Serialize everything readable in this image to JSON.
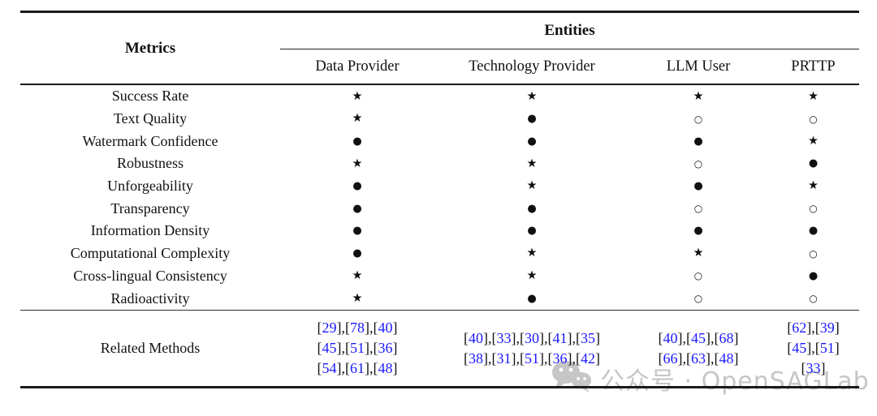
{
  "table": {
    "corner_label": "Metrics",
    "entities_group_label": "Entities",
    "entity_columns": [
      "Data Provider",
      "Technology Provider",
      "LLM User",
      "PRTTP"
    ],
    "symbol_glyphs": {
      "star": "★",
      "filled": "●",
      "open": "○"
    },
    "rows": [
      {
        "metric": "Success Rate",
        "cells": [
          "star",
          "star",
          "star",
          "star"
        ]
      },
      {
        "metric": "Text Quality",
        "cells": [
          "star",
          "filled",
          "open",
          "open"
        ]
      },
      {
        "metric": "Watermark Confidence",
        "cells": [
          "filled",
          "filled",
          "filled",
          "star"
        ]
      },
      {
        "metric": "Robustness",
        "cells": [
          "star",
          "star",
          "open",
          "filled"
        ]
      },
      {
        "metric": "Unforgeability",
        "cells": [
          "filled",
          "star",
          "filled",
          "star"
        ]
      },
      {
        "metric": "Transparency",
        "cells": [
          "filled",
          "filled",
          "open",
          "open"
        ]
      },
      {
        "metric": "Information Density",
        "cells": [
          "filled",
          "filled",
          "filled",
          "filled"
        ]
      },
      {
        "metric": "Computational Complexity",
        "cells": [
          "filled",
          "star",
          "star",
          "open"
        ]
      },
      {
        "metric": "Cross-lingual Consistency",
        "cells": [
          "star",
          "star",
          "open",
          "filled"
        ]
      },
      {
        "metric": "Radioactivity",
        "cells": [
          "star",
          "filled",
          "open",
          "open"
        ]
      }
    ],
    "related_methods": {
      "label": "Related Methods",
      "citation_color": "#1a1aff",
      "columns": [
        {
          "entity": "Data Provider",
          "lines": [
            [
              29,
              78,
              40
            ],
            [
              45,
              51,
              36
            ],
            [
              54,
              61,
              48
            ]
          ]
        },
        {
          "entity": "Technology Provider",
          "lines": [
            [
              40,
              33,
              30,
              41,
              35
            ],
            [
              38,
              31,
              51,
              36,
              42
            ]
          ]
        },
        {
          "entity": "LLM User",
          "lines": [
            [
              40,
              45,
              68
            ],
            [
              66,
              63,
              48
            ]
          ]
        },
        {
          "entity": "PRTTP",
          "lines": [
            [
              62,
              39
            ],
            [
              45,
              51
            ],
            [
              33
            ]
          ]
        }
      ]
    }
  },
  "watermark": {
    "text": "公众号 · OpenSAGLab",
    "icon": "wechat-icon",
    "color": "#c6c6c6"
  }
}
